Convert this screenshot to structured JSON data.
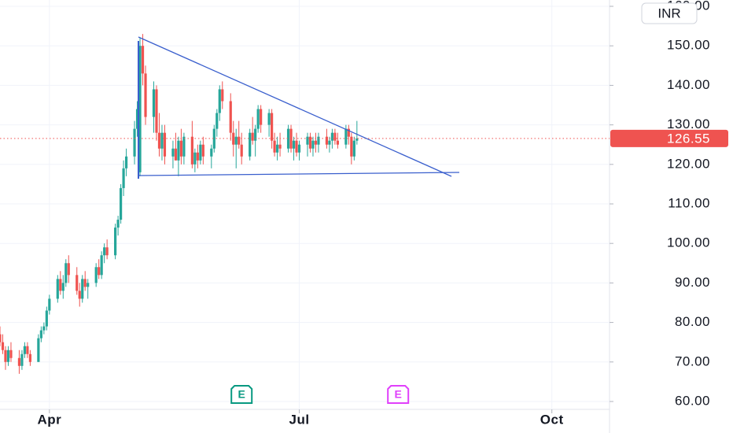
{
  "chart_data": {
    "type": "candlestick",
    "currency": "INR",
    "x": [
      -18,
      -17,
      -16,
      -15,
      -14,
      -11,
      -10,
      -9,
      -8,
      -7,
      -4,
      -3,
      -2,
      -1,
      0,
      3,
      4,
      5,
      6,
      7,
      10,
      11,
      12,
      13,
      14,
      17,
      18,
      19,
      20,
      21,
      24,
      25,
      26,
      27,
      28,
      31,
      32,
      33,
      34,
      35,
      38,
      39,
      40,
      41,
      42,
      45,
      46,
      47,
      48,
      49,
      52,
      53,
      54,
      55,
      56,
      59,
      60,
      61,
      62,
      63,
      66,
      67,
      68,
      69,
      70,
      73,
      74,
      75,
      76,
      77,
      80,
      81,
      82,
      83,
      84,
      87,
      88,
      89,
      90,
      91,
      94,
      95,
      96,
      97,
      98,
      101,
      102,
      103,
      104,
      105,
      108,
      109,
      110,
      111,
      112
    ],
    "open": [
      77,
      75,
      73,
      70,
      73,
      71,
      69,
      72,
      74,
      72,
      70,
      76,
      78,
      79,
      83,
      86,
      91,
      88,
      90,
      95,
      92,
      88,
      86,
      91,
      89,
      90,
      94,
      92,
      97,
      99,
      97,
      104,
      106,
      114,
      119,
      122,
      129,
      118,
      150,
      143,
      132,
      139,
      128,
      124,
      128,
      122,
      124,
      121,
      126,
      122,
      127,
      120,
      123,
      121,
      125,
      122,
      124,
      129,
      133,
      139,
      136,
      128,
      125,
      127,
      125,
      122,
      128,
      126,
      129,
      134,
      130,
      133,
      126,
      123,
      125,
      124,
      129,
      124,
      126,
      123,
      125,
      127,
      124,
      126,
      125,
      127,
      125,
      126,
      128,
      126,
      125,
      129,
      127,
      122,
      126
    ],
    "high": [
      79,
      77,
      74,
      74,
      75,
      73,
      73,
      75,
      75,
      73,
      77,
      79,
      80,
      84,
      87,
      92,
      93,
      92,
      96,
      97,
      94,
      90,
      92,
      93,
      91,
      95,
      96,
      98,
      100,
      101,
      105,
      107,
      115,
      121,
      124,
      131,
      136,
      152,
      153,
      145,
      141,
      140,
      133,
      130,
      130,
      126,
      128,
      127,
      129,
      128,
      131,
      124,
      125,
      126,
      127,
      125,
      130,
      134,
      140,
      141,
      138,
      131,
      129,
      131,
      128,
      129,
      132,
      130,
      135,
      135,
      134,
      134,
      128,
      127,
      128,
      130,
      130,
      127,
      128,
      126,
      128,
      128,
      127,
      128,
      128,
      129,
      127,
      129,
      129,
      128,
      130,
      130,
      128,
      127,
      131
    ],
    "low": [
      74,
      72,
      68,
      69,
      70,
      67,
      68,
      71,
      71,
      69,
      70,
      75,
      77,
      78,
      82,
      85,
      87,
      86,
      89,
      90,
      87,
      84,
      85,
      88,
      86,
      89,
      91,
      91,
      95,
      96,
      96,
      102,
      105,
      112,
      117,
      120,
      127,
      117,
      140,
      130,
      128,
      126,
      122,
      121,
      120,
      119,
      121,
      117,
      120,
      120,
      119,
      118,
      119,
      120,
      120,
      119,
      123,
      127,
      131,
      134,
      126,
      122,
      119,
      124,
      120,
      121,
      125,
      122,
      128,
      128,
      127,
      124,
      122,
      121,
      122,
      123,
      123,
      121,
      122,
      121,
      122,
      123,
      122,
      123,
      123,
      124,
      123,
      124,
      125,
      124,
      124,
      125,
      120,
      121,
      125
    ],
    "close": [
      75,
      73,
      70,
      73,
      71,
      69,
      72,
      74,
      72,
      70,
      76,
      78,
      79,
      83,
      86,
      91,
      88,
      90,
      95,
      92,
      88,
      86,
      91,
      89,
      90,
      94,
      92,
      97,
      99,
      97,
      104,
      106,
      114,
      119,
      122,
      129,
      134,
      150,
      143,
      132,
      139,
      128,
      124,
      128,
      122,
      124,
      121,
      126,
      122,
      127,
      120,
      123,
      121,
      125,
      122,
      124,
      129,
      133,
      139,
      136,
      128,
      125,
      127,
      125,
      122,
      128,
      126,
      129,
      134,
      130,
      133,
      126,
      123,
      125,
      124,
      129,
      124,
      126,
      123,
      125,
      127,
      124,
      126,
      125,
      127,
      125,
      126,
      128,
      126,
      125,
      129,
      127,
      122,
      126,
      126.55
    ],
    "up_color": "#26a69a",
    "down_color": "#ef5350",
    "last_price": 126.55,
    "last_price_label": "126.55",
    "xlim": [
      -18,
      204
    ],
    "xticks": [
      {
        "value": 0,
        "label": "Apr"
      },
      {
        "value": 91,
        "label": "Jul"
      },
      {
        "value": 183,
        "label": "Oct"
      }
    ],
    "ylim": [
      58,
      161.6
    ],
    "yticks": [
      {
        "value": 60,
        "label": "60.00"
      },
      {
        "value": 70,
        "label": "70.00"
      },
      {
        "value": 80,
        "label": "80.00"
      },
      {
        "value": 90,
        "label": "90.00"
      },
      {
        "value": 100,
        "label": "100.00"
      },
      {
        "value": 110,
        "label": "110.00"
      },
      {
        "value": 120,
        "label": "120.00"
      },
      {
        "value": 130,
        "label": "130.00"
      },
      {
        "value": 140,
        "label": "140.00"
      },
      {
        "value": 150,
        "label": "150.00"
      },
      {
        "value": 160,
        "label": "160.00"
      }
    ],
    "grid": true,
    "events": [
      {
        "label": "E",
        "x": 70,
        "color": "#089981"
      },
      {
        "label": "E",
        "x": 127,
        "color": "#e040fb"
      }
    ]
  }
}
